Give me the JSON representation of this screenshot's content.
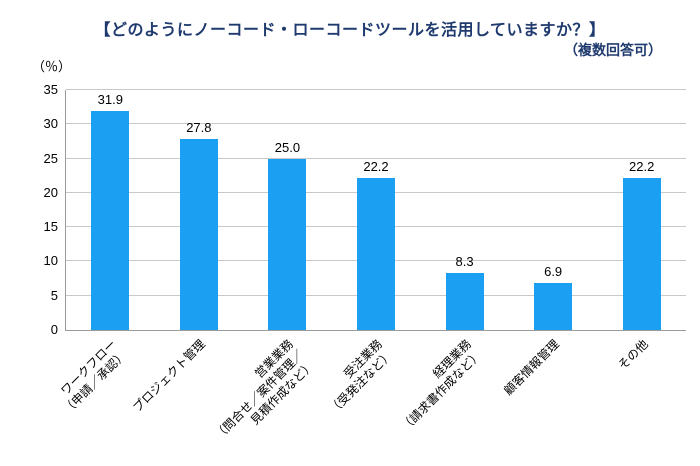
{
  "header": {
    "title": "【どのようにノーコード・ローコードツールを活用していますか？】",
    "subtitle": "（複数回答可）",
    "unit_label": "（％）"
  },
  "colors": {
    "bar": "#1b9ff2",
    "title": "#1f3a6e",
    "grid": "#c9c9c9",
    "axis": "#9a9a9a"
  },
  "chart_data": {
    "type": "bar",
    "title": "【どのようにノーコード・ローコードツールを活用していますか？】",
    "subtitle": "（複数回答可）",
    "xlabel": "",
    "ylabel": "（％）",
    "ylim": [
      0,
      35
    ],
    "yticks": [
      0,
      5,
      10,
      15,
      20,
      25,
      30,
      35
    ],
    "grid": true,
    "legend_position": "none",
    "categories": [
      "ワークフロー\n（申請／承認）",
      "プロジェクト管理",
      "営業業務\n（問合せ／案件管理／\n見積作成など）",
      "受注業務\n（受発注など）",
      "経理業務\n（請求書作成など）",
      "顧客情報管理",
      "その他"
    ],
    "values": [
      31.9,
      27.8,
      25.0,
      22.2,
      8.3,
      6.9,
      22.2
    ],
    "value_labels": [
      "31.9",
      "27.8",
      "25.0",
      "22.2",
      "8.3",
      "6.9",
      "22.2"
    ]
  }
}
